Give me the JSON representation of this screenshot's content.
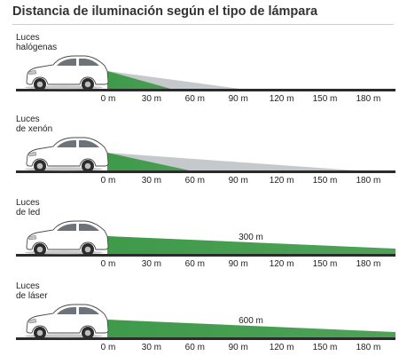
{
  "chart_data": {
    "type": "bar",
    "title": "Distancia de iluminación según el tipo de lámpara",
    "x_ticks": [
      "0 m",
      "30 m",
      "60 m",
      "90 m",
      "120 m",
      "150 m",
      "180 m"
    ],
    "x_tick_values": [
      0,
      30,
      60,
      90,
      120,
      150,
      180
    ],
    "xlim": [
      0,
      200
    ],
    "unit": "m",
    "colors": {
      "beam": "#3f9a4a",
      "beam_light": "#8fd08f",
      "spill": "#c6c9cc",
      "ground": "#2b2b2b",
      "car_body": "#ffffff",
      "car_outline": "#4a4a4a"
    },
    "series": [
      {
        "label": [
          "Luces",
          "halógenas"
        ],
        "beam_end": 42,
        "spill_end": 90,
        "value_label": ""
      },
      {
        "label": [
          "Luces",
          "de xenón"
        ],
        "beam_end": 55,
        "spill_end": 170,
        "value_label": ""
      },
      {
        "label": [
          "Luces",
          "de led"
        ],
        "beam_end": 200,
        "spill_end": 200,
        "value_label": "300 m"
      },
      {
        "label": [
          "Luces",
          "de láser"
        ],
        "beam_end": 200,
        "spill_end": 200,
        "value_label": "600 m"
      }
    ]
  }
}
